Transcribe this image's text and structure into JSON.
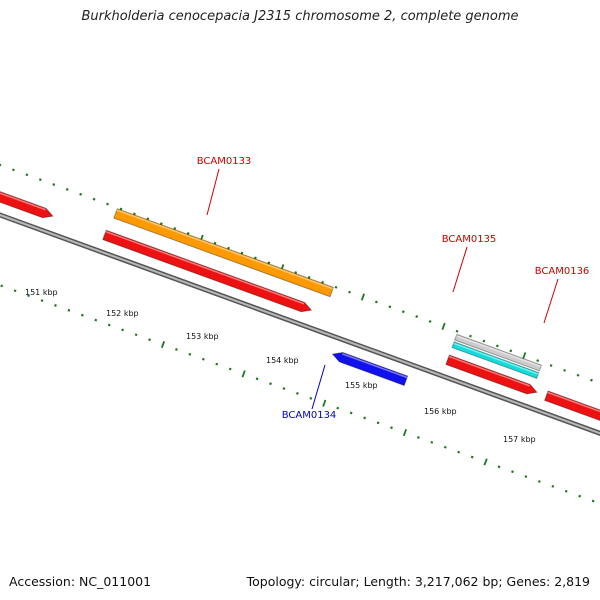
{
  "title": "Burkholderia cenocepacia J2315 chromosome 2, complete genome",
  "footer": {
    "accession": "Accession: NC_011001",
    "summary": "Topology: circular; Length: 3,217,062 bp; Genes: 2,819"
  },
  "colors": {
    "backbone": "#8a8a8a",
    "tick_green": "#1a7a1a",
    "forward_gene": "#ee1111",
    "reverse_gene": "#1111ee",
    "orange_feature": "#ff9900",
    "cyan_feature": "#11dddd",
    "gray_feature": "#cccccc",
    "forward_label": "#cc0000",
    "reverse_label": "#0000cc"
  },
  "kbp_labels": [
    "151 kbp",
    "152 kbp",
    "153 kbp",
    "154 kbp",
    "155 kbp",
    "156 kbp",
    "157 kbp"
  ],
  "gene_labels": [
    {
      "id": "BCAM0133",
      "strand": "forward"
    },
    {
      "id": "BCAM0134",
      "strand": "reverse"
    },
    {
      "id": "BCAM0135",
      "strand": "forward"
    },
    {
      "id": "BCAM0136",
      "strand": "forward"
    }
  ]
}
